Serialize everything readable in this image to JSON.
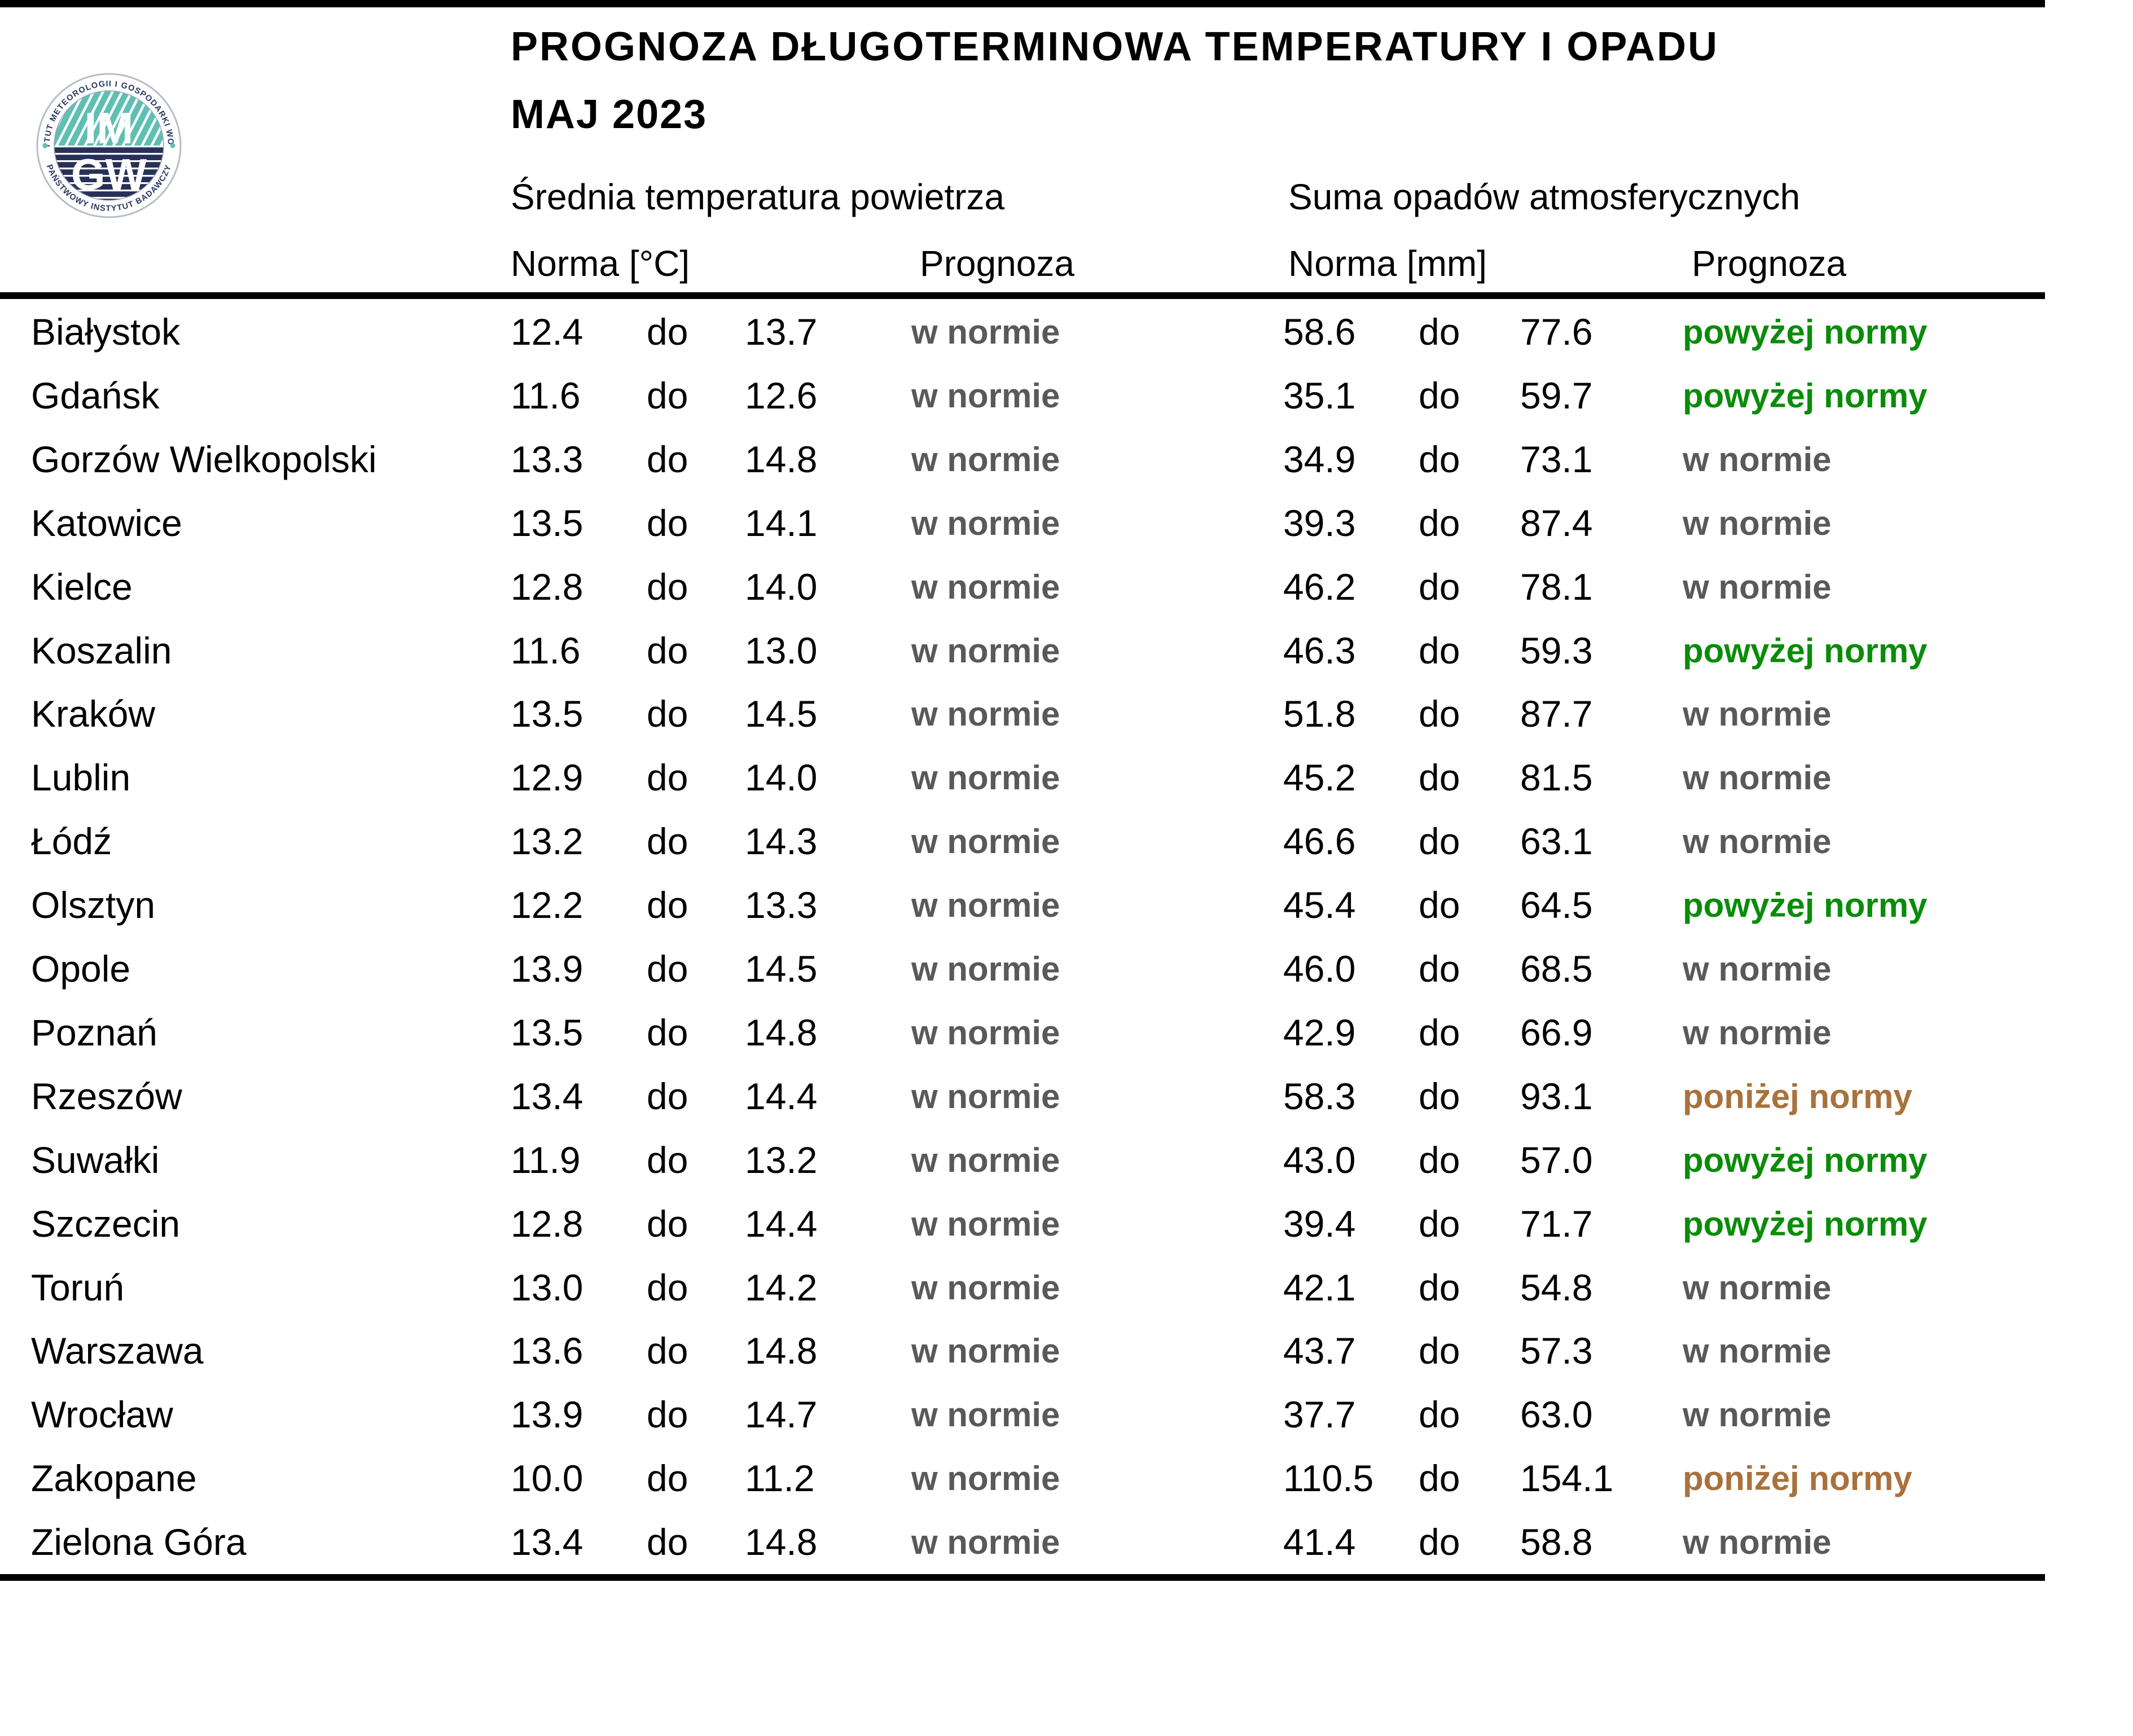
{
  "header": {
    "title": "PROGNOZA DŁUGOTERMINOWA TEMPERATURY I OPADU",
    "month": "MAJ 2023",
    "temp_section": "Średnia temperatura powietrza",
    "precip_section": "Suma opadów atmosferycznych",
    "temp_norm_label": "Norma [°C]",
    "temp_prog_label": "Prognoza",
    "precip_norm_label": "Norma [mm]",
    "precip_prog_label": "Prognoza",
    "range_separator": "do"
  },
  "logo": {
    "ring_top": "INSTYTUT METEOROLOGII I GOSPODARKI WODNEJ",
    "ring_bottom": "PAŃSTWOWY INSTYTUT BADAWCZY",
    "monogram_top": "IM",
    "monogram_bottom": "GW",
    "teal": "#5fbfb4",
    "navy": "#273158"
  },
  "colors": {
    "normal": "#595959",
    "above": "#0a8c0a",
    "below": "#a9713c"
  },
  "rows": [
    {
      "city": "Białystok",
      "temp_min": "12.4",
      "temp_max": "13.7",
      "temp_forecast": "w normie",
      "temp_status": "normal",
      "precip_min": "58.6",
      "precip_max": "77.6",
      "precip_forecast": "powyżej normy",
      "precip_status": "above"
    },
    {
      "city": "Gdańsk",
      "temp_min": "11.6",
      "temp_max": "12.6",
      "temp_forecast": "w normie",
      "temp_status": "normal",
      "precip_min": "35.1",
      "precip_max": "59.7",
      "precip_forecast": "powyżej normy",
      "precip_status": "above"
    },
    {
      "city": "Gorzów Wielkopolski",
      "temp_min": "13.3",
      "temp_max": "14.8",
      "temp_forecast": "w normie",
      "temp_status": "normal",
      "precip_min": "34.9",
      "precip_max": "73.1",
      "precip_forecast": "w normie",
      "precip_status": "normal"
    },
    {
      "city": "Katowice",
      "temp_min": "13.5",
      "temp_max": "14.1",
      "temp_forecast": "w normie",
      "temp_status": "normal",
      "precip_min": "39.3",
      "precip_max": "87.4",
      "precip_forecast": "w normie",
      "precip_status": "normal"
    },
    {
      "city": "Kielce",
      "temp_min": "12.8",
      "temp_max": "14.0",
      "temp_forecast": "w normie",
      "temp_status": "normal",
      "precip_min": "46.2",
      "precip_max": "78.1",
      "precip_forecast": "w normie",
      "precip_status": "normal"
    },
    {
      "city": "Koszalin",
      "temp_min": "11.6",
      "temp_max": "13.0",
      "temp_forecast": "w normie",
      "temp_status": "normal",
      "precip_min": "46.3",
      "precip_max": "59.3",
      "precip_forecast": "powyżej normy",
      "precip_status": "above"
    },
    {
      "city": "Kraków",
      "temp_min": "13.5",
      "temp_max": "14.5",
      "temp_forecast": "w normie",
      "temp_status": "normal",
      "precip_min": "51.8",
      "precip_max": "87.7",
      "precip_forecast": "w normie",
      "precip_status": "normal"
    },
    {
      "city": "Lublin",
      "temp_min": "12.9",
      "temp_max": "14.0",
      "temp_forecast": "w normie",
      "temp_status": "normal",
      "precip_min": "45.2",
      "precip_max": "81.5",
      "precip_forecast": "w normie",
      "precip_status": "normal"
    },
    {
      "city": "Łódź",
      "temp_min": "13.2",
      "temp_max": "14.3",
      "temp_forecast": "w normie",
      "temp_status": "normal",
      "precip_min": "46.6",
      "precip_max": "63.1",
      "precip_forecast": "w normie",
      "precip_status": "normal"
    },
    {
      "city": "Olsztyn",
      "temp_min": "12.2",
      "temp_max": "13.3",
      "temp_forecast": "w normie",
      "temp_status": "normal",
      "precip_min": "45.4",
      "precip_max": "64.5",
      "precip_forecast": "powyżej normy",
      "precip_status": "above"
    },
    {
      "city": "Opole",
      "temp_min": "13.9",
      "temp_max": "14.5",
      "temp_forecast": "w normie",
      "temp_status": "normal",
      "precip_min": "46.0",
      "precip_max": "68.5",
      "precip_forecast": "w normie",
      "precip_status": "normal"
    },
    {
      "city": "Poznań",
      "temp_min": "13.5",
      "temp_max": "14.8",
      "temp_forecast": "w normie",
      "temp_status": "normal",
      "precip_min": "42.9",
      "precip_max": "66.9",
      "precip_forecast": "w normie",
      "precip_status": "normal"
    },
    {
      "city": "Rzeszów",
      "temp_min": "13.4",
      "temp_max": "14.4",
      "temp_forecast": "w normie",
      "temp_status": "normal",
      "precip_min": "58.3",
      "precip_max": "93.1",
      "precip_forecast": "poniżej normy",
      "precip_status": "below"
    },
    {
      "city": "Suwałki",
      "temp_min": "11.9",
      "temp_max": "13.2",
      "temp_forecast": "w normie",
      "temp_status": "normal",
      "precip_min": "43.0",
      "precip_max": "57.0",
      "precip_forecast": "powyżej normy",
      "precip_status": "above"
    },
    {
      "city": "Szczecin",
      "temp_min": "12.8",
      "temp_max": "14.4",
      "temp_forecast": "w normie",
      "temp_status": "normal",
      "precip_min": "39.4",
      "precip_max": "71.7",
      "precip_forecast": "powyżej normy",
      "precip_status": "above"
    },
    {
      "city": "Toruń",
      "temp_min": "13.0",
      "temp_max": "14.2",
      "temp_forecast": "w normie",
      "temp_status": "normal",
      "precip_min": "42.1",
      "precip_max": "54.8",
      "precip_forecast": "w normie",
      "precip_status": "normal"
    },
    {
      "city": "Warszawa",
      "temp_min": "13.6",
      "temp_max": "14.8",
      "temp_forecast": "w normie",
      "temp_status": "normal",
      "precip_min": "43.7",
      "precip_max": "57.3",
      "precip_forecast": "w normie",
      "precip_status": "normal"
    },
    {
      "city": "Wrocław",
      "temp_min": "13.9",
      "temp_max": "14.7",
      "temp_forecast": "w normie",
      "temp_status": "normal",
      "precip_min": "37.7",
      "precip_max": "63.0",
      "precip_forecast": "w normie",
      "precip_status": "normal"
    },
    {
      "city": "Zakopane",
      "temp_min": "10.0",
      "temp_max": "11.2",
      "temp_forecast": "w normie",
      "temp_status": "normal",
      "precip_min": "110.5",
      "precip_max": "154.1",
      "precip_forecast": "poniżej normy",
      "precip_status": "below"
    },
    {
      "city": "Zielona Góra",
      "temp_min": "13.4",
      "temp_max": "14.8",
      "temp_forecast": "w normie",
      "temp_status": "normal",
      "precip_min": "41.4",
      "precip_max": "58.8",
      "precip_forecast": "w normie",
      "precip_status": "normal"
    }
  ]
}
